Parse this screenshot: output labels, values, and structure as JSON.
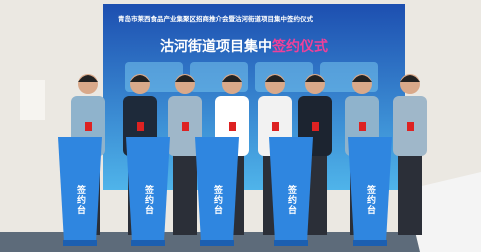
{
  "screen": {
    "header": "青岛市莱西食品产业集聚区招商推介会暨沽河街道项目集中签约仪式",
    "title_main": "沽河街道项目集中",
    "title_highlight": "签约仪式"
  },
  "podiums": [
    {
      "label": "签约台"
    },
    {
      "label": "签约台"
    },
    {
      "label": "签约台"
    },
    {
      "label": "签约台"
    },
    {
      "label": "签约台"
    }
  ]
}
